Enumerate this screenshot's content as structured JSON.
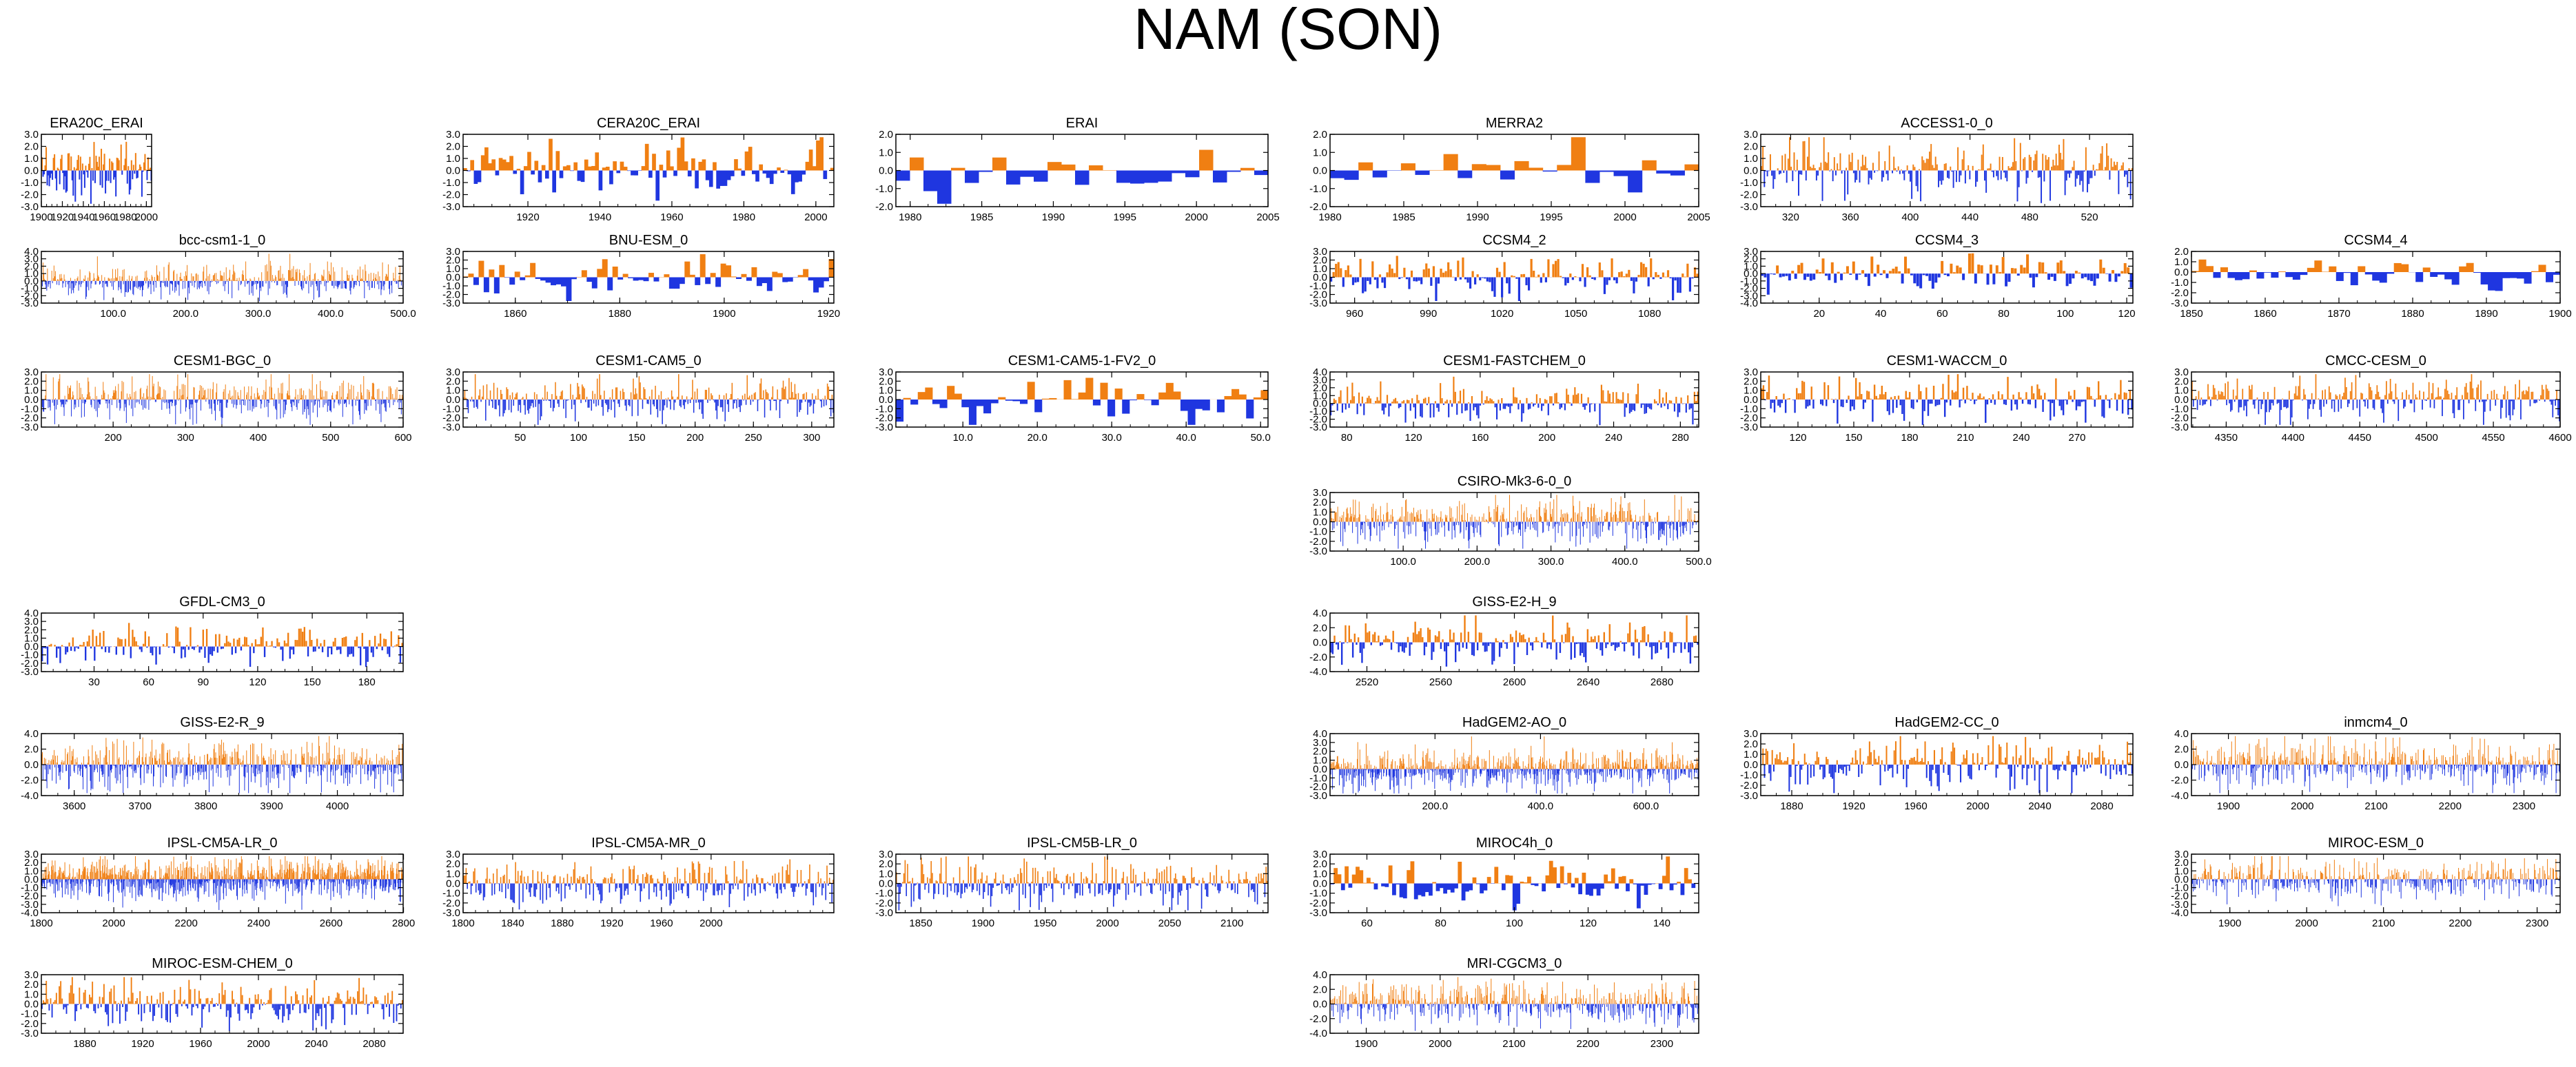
{
  "title": "NAM (SON)",
  "colors": {
    "positive": "#f07f12",
    "negative": "#1f36e0",
    "axis": "#000000"
  },
  "chart_data": [
    {
      "type": "area",
      "title": "ERA20C_ERAI",
      "x": [
        1900,
        2005
      ],
      "yticks": [
        "3.0",
        "2.0",
        "1.0",
        "0.0",
        "-1.0",
        "-2.0",
        "-3.0"
      ],
      "ylim": [
        -3,
        3
      ],
      "xticks": [
        "1900",
        "1920",
        "1940",
        "1960",
        "1980",
        "2000"
      ],
      "series": []
    },
    {
      "type": "area",
      "title": "CERA20C_ERAI",
      "x": [
        1902,
        2005
      ],
      "yticks": [
        "3.0",
        "2.0",
        "1.0",
        "0.0",
        "-1.0",
        "-2.0",
        "-3.0"
      ],
      "ylim": [
        -3,
        3
      ],
      "xticks": [
        "1920",
        "1940",
        "1960",
        "1980",
        "2000"
      ],
      "series": []
    },
    {
      "type": "area",
      "title": "ERAI",
      "x": [
        1979,
        2005
      ],
      "yticks": [
        "2.0",
        "1.0",
        "0.0",
        "-1.0",
        "-2.0"
      ],
      "ylim": [
        -2,
        2
      ],
      "xticks": [
        "1980",
        "1985",
        "1990",
        "1995",
        "2000",
        "2005"
      ],
      "series": []
    },
    {
      "type": "area",
      "title": "MERRA2",
      "x": [
        1980,
        2005
      ],
      "yticks": [
        "2.0",
        "1.0",
        "0.0",
        "-1.0",
        "-2.0"
      ],
      "ylim": [
        -2,
        2
      ],
      "xticks": [
        "1980",
        "1985",
        "1990",
        "1995",
        "2000",
        "2005"
      ],
      "series": []
    },
    {
      "type": "area",
      "title": "ACCESS1-0_0",
      "x": [
        300,
        549
      ],
      "yticks": [
        "3.0",
        "2.0",
        "1.0",
        "0.0",
        "-1.0",
        "-2.0",
        "-3.0"
      ],
      "ylim": [
        -3,
        3
      ],
      "xticks": [
        "320",
        "360",
        "400",
        "440",
        "480",
        "520"
      ],
      "series": []
    },
    {
      "type": "area",
      "title": "bcc-csm1-1_0",
      "x": [
        1,
        500
      ],
      "yticks": [
        "4.0",
        "3.0",
        "2.0",
        "1.0",
        "0.0",
        "-1.0",
        "-2.0",
        "-3.0"
      ],
      "ylim": [
        -3,
        4
      ],
      "xticks": [
        "100.0",
        "200.0",
        "300.0",
        "400.0",
        "500.0"
      ],
      "series": []
    },
    {
      "type": "area",
      "title": "BNU-ESM_0",
      "x": [
        1850,
        1921
      ],
      "yticks": [
        "3.0",
        "2.0",
        "1.0",
        "0.0",
        "-1.0",
        "-2.0",
        "-3.0"
      ],
      "ylim": [
        -3,
        3
      ],
      "xticks": [
        "1860",
        "1880",
        "1900",
        "1920"
      ],
      "series": []
    },
    {
      "type": "area",
      "title": "CCSM4_2",
      "x": [
        950,
        1100
      ],
      "yticks": [
        "3.0",
        "2.0",
        "1.0",
        "0.0",
        "-1.0",
        "-2.0",
        "-3.0"
      ],
      "ylim": [
        -3,
        3
      ],
      "xticks": [
        "960",
        "990",
        "1020",
        "1050",
        "1080"
      ],
      "series": []
    },
    {
      "type": "area",
      "title": "CCSM4_3",
      "x": [
        1,
        122
      ],
      "yticks": [
        "3.0",
        "2.0",
        "1.0",
        "0.0",
        "-1.0",
        "-2.0",
        "-3.0",
        "-4.0"
      ],
      "ylim": [
        -4,
        3
      ],
      "xticks": [
        "20",
        "40",
        "60",
        "80",
        "100",
        "120"
      ],
      "series": []
    },
    {
      "type": "area",
      "title": "CCSM4_4",
      "x": [
        1850,
        1900
      ],
      "yticks": [
        "2.0",
        "1.0",
        "0.0",
        "-1.0",
        "-2.0",
        "-3.0"
      ],
      "ylim": [
        -3,
        2
      ],
      "xticks": [
        "1850",
        "1860",
        "1870",
        "1880",
        "1890",
        "1900"
      ],
      "series": []
    },
    {
      "type": "area",
      "title": "CESM1-BGC_0",
      "x": [
        101,
        600
      ],
      "yticks": [
        "3.0",
        "2.0",
        "1.0",
        "0.0",
        "-1.0",
        "-2.0",
        "-3.0"
      ],
      "ylim": [
        -3,
        3
      ],
      "xticks": [
        "200",
        "300",
        "400",
        "500",
        "600"
      ],
      "series": []
    },
    {
      "type": "area",
      "title": "CESM1-CAM5_0",
      "x": [
        1,
        319
      ],
      "yticks": [
        "3.0",
        "2.0",
        "1.0",
        "0.0",
        "-1.0",
        "-2.0",
        "-3.0"
      ],
      "ylim": [
        -3,
        3
      ],
      "xticks": [
        "50",
        "100",
        "150",
        "200",
        "250",
        "300"
      ],
      "series": []
    },
    {
      "type": "area",
      "title": "CESM1-CAM5-1-FV2_0",
      "x": [
        1,
        51
      ],
      "yticks": [
        "3.0",
        "2.0",
        "1.0",
        "0.0",
        "-1.0",
        "-2.0",
        "-3.0"
      ],
      "ylim": [
        -3,
        3
      ],
      "xticks": [
        "10.0",
        "20.0",
        "30.0",
        "40.0",
        "50.0"
      ],
      "series": []
    },
    {
      "type": "area",
      "title": "CESM1-FASTCHEM_0",
      "x": [
        70,
        291
      ],
      "yticks": [
        "4.0",
        "3.0",
        "2.0",
        "1.0",
        "0.0",
        "-1.0",
        "-2.0",
        "-3.0"
      ],
      "ylim": [
        -3,
        4
      ],
      "xticks": [
        "80",
        "120",
        "160",
        "200",
        "240",
        "280"
      ],
      "series": []
    },
    {
      "type": "area",
      "title": "CESM1-WACCM_0",
      "x": [
        100,
        300
      ],
      "yticks": [
        "3.0",
        "2.0",
        "1.0",
        "0.0",
        "-1.0",
        "-2.0",
        "-3.0"
      ],
      "ylim": [
        -3,
        3
      ],
      "xticks": [
        "120",
        "150",
        "180",
        "210",
        "240",
        "270"
      ],
      "series": []
    },
    {
      "type": "area",
      "title": "CMCC-CESM_0",
      "x": [
        4324,
        4600
      ],
      "yticks": [
        "3.0",
        "2.0",
        "1.0",
        "0.0",
        "-1.0",
        "-2.0",
        "-3.0"
      ],
      "ylim": [
        -3,
        3
      ],
      "xticks": [
        "4350",
        "4400",
        "4450",
        "4500",
        "4550",
        "4600"
      ],
      "series": []
    },
    {
      "type": "area",
      "title": "CSIRO-Mk3-6-0_0",
      "x": [
        1,
        500
      ],
      "yticks": [
        "3.0",
        "2.0",
        "1.0",
        "0.0",
        "-1.0",
        "-2.0",
        "-3.0"
      ],
      "ylim": [
        -3,
        3
      ],
      "xticks": [
        "100.0",
        "200.0",
        "300.0",
        "400.0",
        "500.0"
      ],
      "series": []
    },
    {
      "type": "area",
      "title": "GFDL-CM3_0",
      "x": [
        1,
        200
      ],
      "yticks": [
        "4.0",
        "3.0",
        "2.0",
        "1.0",
        "0.0",
        "-1.0",
        "-2.0",
        "-3.0"
      ],
      "ylim": [
        -3,
        4
      ],
      "xticks": [
        "30",
        "60",
        "90",
        "120",
        "150",
        "180"
      ],
      "series": []
    },
    {
      "type": "area",
      "title": "GISS-E2-H_9",
      "x": [
        2500,
        2700
      ],
      "yticks": [
        "4.0",
        "2.0",
        "0.0",
        "-2.0",
        "-4.0"
      ],
      "ylim": [
        -4,
        4
      ],
      "xticks": [
        "2520",
        "2560",
        "2600",
        "2640",
        "2680"
      ],
      "series": []
    },
    {
      "type": "area",
      "title": "GISS-E2-R_9",
      "x": [
        3550,
        4100
      ],
      "yticks": [
        "4.0",
        "2.0",
        "0.0",
        "-2.0",
        "-4.0"
      ],
      "ylim": [
        -4,
        4
      ],
      "xticks": [
        "3600",
        "3700",
        "3800",
        "3900",
        "4000"
      ],
      "series": []
    },
    {
      "type": "area",
      "title": "HadGEM2-AO_0",
      "x": [
        1,
        700
      ],
      "yticks": [
        "4.0",
        "3.0",
        "2.0",
        "1.0",
        "0.0",
        "-1.0",
        "-2.0",
        "-3.0"
      ],
      "ylim": [
        -3,
        4
      ],
      "xticks": [
        "200.0",
        "400.0",
        "600.0"
      ],
      "series": []
    },
    {
      "type": "area",
      "title": "HadGEM2-CC_0",
      "x": [
        1860,
        2100
      ],
      "yticks": [
        "3.0",
        "2.0",
        "1.0",
        "0.0",
        "-1.0",
        "-2.0",
        "-3.0"
      ],
      "ylim": [
        -3,
        3
      ],
      "xticks": [
        "1880",
        "1920",
        "1960",
        "2000",
        "2040",
        "2080"
      ],
      "series": []
    },
    {
      "type": "area",
      "title": "inmcm4_0",
      "x": [
        1850,
        2349
      ],
      "yticks": [
        "4.0",
        "2.0",
        "0.0",
        "-2.0",
        "-4.0"
      ],
      "ylim": [
        -4,
        4
      ],
      "xticks": [
        "1900",
        "2000",
        "2100",
        "2200",
        "2300"
      ],
      "series": []
    },
    {
      "type": "area",
      "title": "IPSL-CM5A-LR_0",
      "x": [
        1800,
        2799
      ],
      "yticks": [
        "3.0",
        "2.0",
        "1.0",
        "0.0",
        "-1.0",
        "-2.0",
        "-3.0",
        "-4.0"
      ],
      "ylim": [
        -4,
        3
      ],
      "xticks": [
        "1800",
        "2000",
        "2200",
        "2400",
        "2600",
        "2800"
      ],
      "series": []
    },
    {
      "type": "area",
      "title": "IPSL-CM5A-MR_0",
      "x": [
        1800,
        2099
      ],
      "yticks": [
        "3.0",
        "2.0",
        "1.0",
        "0.0",
        "-1.0",
        "-2.0",
        "-3.0"
      ],
      "ylim": [
        -3,
        3
      ],
      "xticks": [
        "1800",
        "1840",
        "1880",
        "1920",
        "1960",
        "2000"
      ],
      "series": []
    },
    {
      "type": "area",
      "title": "IPSL-CM5B-LR_0",
      "x": [
        1830,
        2129
      ],
      "yticks": [
        "3.0",
        "2.0",
        "1.0",
        "0.0",
        "-1.0",
        "-2.0",
        "-3.0"
      ],
      "ylim": [
        -3,
        3
      ],
      "xticks": [
        "1850",
        "1900",
        "1950",
        "2000",
        "2050",
        "2100"
      ],
      "series": []
    },
    {
      "type": "area",
      "title": "MIROC4h_0",
      "x": [
        50,
        150
      ],
      "yticks": [
        "3.0",
        "2.0",
        "1.0",
        "0.0",
        "-1.0",
        "-2.0",
        "-3.0"
      ],
      "ylim": [
        -3,
        3
      ],
      "xticks": [
        "60",
        "80",
        "100",
        "120",
        "140"
      ],
      "series": []
    },
    {
      "type": "area",
      "title": "MIROC-ESM_0",
      "x": [
        1850,
        2330
      ],
      "yticks": [
        "3.0",
        "2.0",
        "1.0",
        "0.0",
        "-1.0",
        "-2.0",
        "-3.0",
        "-4.0"
      ],
      "ylim": [
        -4,
        3
      ],
      "xticks": [
        "1900",
        "2000",
        "2100",
        "2200",
        "2300"
      ],
      "series": []
    },
    {
      "type": "area",
      "title": "MIROC-ESM-CHEM_0",
      "x": [
        1850,
        2100
      ],
      "yticks": [
        "3.0",
        "2.0",
        "1.0",
        "0.0",
        "-1.0",
        "-2.0",
        "-3.0"
      ],
      "ylim": [
        -3,
        3
      ],
      "xticks": [
        "1880",
        "1920",
        "1960",
        "2000",
        "2040",
        "2080"
      ],
      "series": []
    },
    {
      "type": "area",
      "title": "MRI-CGCM3_0",
      "x": [
        1851,
        2350
      ],
      "yticks": [
        "4.0",
        "2.0",
        "0.0",
        "-2.0",
        "-4.0"
      ],
      "ylim": [
        -4,
        4
      ],
      "xticks": [
        "1900",
        "2000",
        "2100",
        "2200",
        "2300"
      ],
      "series": []
    }
  ]
}
